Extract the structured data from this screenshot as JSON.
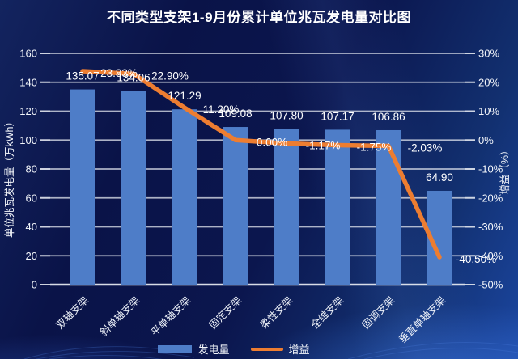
{
  "chart_data": {
    "type": "bar",
    "combo": "bar+line",
    "title": "不同类型支架1-9月份累计单位兆瓦发电量对比图",
    "categories": [
      "双轴支架",
      "斜单轴支架",
      "平单轴支架",
      "固定支架",
      "柔性支架",
      "全维支架",
      "固调支架",
      "垂直单轴支架"
    ],
    "series": [
      {
        "name": "发电量",
        "type": "bar",
        "axis": "left",
        "color": "#4e7dc8",
        "values": [
          135.07,
          134.06,
          121.29,
          109.08,
          107.8,
          107.17,
          106.86,
          64.9
        ],
        "labels": [
          "135.07",
          "134.06",
          "121.29",
          "109.08",
          "107.80",
          "107.17",
          "106.86",
          "64.90"
        ]
      },
      {
        "name": "增益",
        "type": "line",
        "axis": "right",
        "color": "#ed7d31",
        "values": [
          23.83,
          22.9,
          11.2,
          0.0,
          -1.17,
          -1.75,
          -2.03,
          -40.5
        ],
        "labels": [
          "23.83%",
          "22.90%",
          "11.20%",
          "0.00%",
          "-1.17%",
          "-1.75%",
          "-2.03%",
          "-40.50%"
        ]
      }
    ],
    "left_axis": {
      "title": "单位兆瓦发电量（万kWh）",
      "min": 0,
      "max": 160,
      "step": 20,
      "tick_labels": [
        "160",
        "140",
        "120",
        "100",
        "80",
        "60",
        "40",
        "20",
        "0"
      ]
    },
    "right_axis": {
      "title": "增益（%）",
      "min": -50,
      "max": 30,
      "step": 10,
      "tick_labels": [
        "30%",
        "20%",
        "10%",
        "0%",
        "-10%",
        "-20%",
        "-30%",
        "-40%",
        "-50%"
      ]
    },
    "grid": true,
    "legend_position": "bottom"
  },
  "colors": {
    "background_dark": "#0a1348",
    "background_light": "#1b46a0",
    "bar": "#4e7dc8",
    "line": "#ed7d31",
    "gridline": "#d4d9e4",
    "text": "#ffffff"
  }
}
